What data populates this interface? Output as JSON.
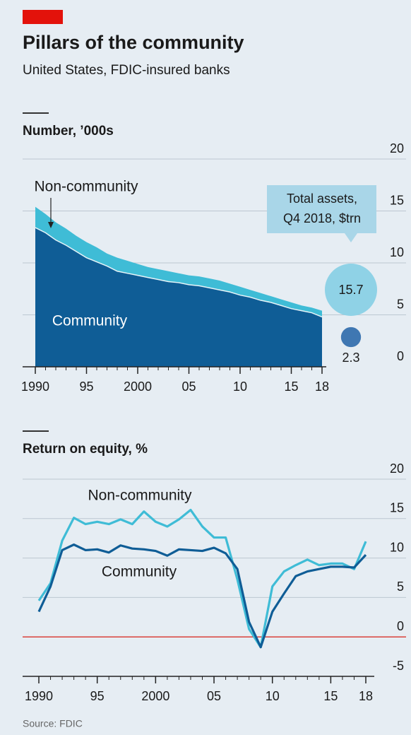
{
  "title": "Pillars of the community",
  "subtitle": "United States, FDIC-insured banks",
  "source": "Source: FDIC",
  "chart_data": [
    {
      "type": "area",
      "stacked": true,
      "title": "Number, ’000s",
      "x": [
        1990,
        1991,
        1992,
        1993,
        1994,
        1995,
        1996,
        1997,
        1998,
        1999,
        2000,
        2001,
        2002,
        2003,
        2004,
        2005,
        2006,
        2007,
        2008,
        2009,
        2010,
        2011,
        2012,
        2013,
        2014,
        2015,
        2016,
        2017,
        2018
      ],
      "xlim": [
        1990,
        2018
      ],
      "xticks": [
        {
          "value": 1990,
          "label": "1990"
        },
        {
          "value": 1995,
          "label": "95"
        },
        {
          "value": 2000,
          "label": "2000"
        },
        {
          "value": 2005,
          "label": "05"
        },
        {
          "value": 2010,
          "label": "10"
        },
        {
          "value": 2015,
          "label": "15"
        },
        {
          "value": 2018,
          "label": "18"
        }
      ],
      "ylim": [
        0,
        20
      ],
      "yticks": [
        0,
        5,
        10,
        15,
        20
      ],
      "grid": true,
      "series": [
        {
          "name": "Community",
          "color": "#0f5d96",
          "values": [
            13.4,
            12.9,
            12.2,
            11.7,
            11.1,
            10.5,
            10.1,
            9.7,
            9.2,
            9.0,
            8.8,
            8.6,
            8.4,
            8.2,
            8.1,
            7.9,
            7.8,
            7.6,
            7.4,
            7.2,
            6.9,
            6.7,
            6.4,
            6.2,
            5.9,
            5.6,
            5.4,
            5.2,
            4.8
          ]
        },
        {
          "name": "Non-community",
          "color": "#3fbcd6",
          "values": [
            2.0,
            1.8,
            1.7,
            1.6,
            1.5,
            1.5,
            1.4,
            1.2,
            1.3,
            1.2,
            1.1,
            1.0,
            1.0,
            1.0,
            0.9,
            0.9,
            0.9,
            0.9,
            0.9,
            0.8,
            0.8,
            0.7,
            0.7,
            0.6,
            0.6,
            0.6,
            0.5,
            0.5,
            0.6
          ]
        }
      ],
      "bubbles": {
        "title": [
          "Total assets,",
          "Q4 2018, $trn"
        ],
        "values": [
          15.7,
          2.3
        ],
        "colors": [
          "#8fd2e6",
          "#3f77b2"
        ]
      }
    },
    {
      "type": "line",
      "title": "Return on equity, %",
      "x": [
        1990,
        1991,
        1992,
        1993,
        1994,
        1995,
        1996,
        1997,
        1998,
        1999,
        2000,
        2001,
        2002,
        2003,
        2004,
        2005,
        2006,
        2007,
        2008,
        2009,
        2010,
        2011,
        2012,
        2013,
        2014,
        2015,
        2016,
        2017,
        2018
      ],
      "xlim": [
        1990,
        2018
      ],
      "xticks": [
        {
          "value": 1990,
          "label": "1990"
        },
        {
          "value": 1995,
          "label": "95"
        },
        {
          "value": 2000,
          "label": "2000"
        },
        {
          "value": 2005,
          "label": "05"
        },
        {
          "value": 2010,
          "label": "10"
        },
        {
          "value": 2015,
          "label": "15"
        },
        {
          "value": 2018,
          "label": "18"
        }
      ],
      "ylim": [
        -5,
        20
      ],
      "yticks": [
        -5,
        0,
        5,
        10,
        15,
        20
      ],
      "grid": true,
      "zero_line": "#d9413b",
      "series": [
        {
          "name": "Non-community",
          "color": "#3fbcd6",
          "values": [
            4.6,
            6.8,
            12.2,
            15.1,
            14.3,
            14.6,
            14.3,
            14.9,
            14.3,
            15.9,
            14.6,
            14.0,
            14.9,
            16.1,
            14.0,
            12.6,
            12.6,
            7.3,
            1.0,
            -1.3,
            6.4,
            8.3,
            9.1,
            9.8,
            9.1,
            9.3,
            9.3,
            8.6,
            12.1
          ]
        },
        {
          "name": "Community",
          "color": "#0f5d96",
          "values": [
            3.2,
            6.4,
            11.0,
            11.7,
            11.0,
            11.1,
            10.7,
            11.6,
            11.2,
            11.1,
            10.9,
            10.3,
            11.1,
            11.0,
            10.9,
            11.3,
            10.6,
            8.6,
            1.9,
            -1.3,
            3.2,
            5.5,
            7.7,
            8.3,
            8.6,
            8.9,
            8.9,
            8.8,
            10.4
          ]
        }
      ]
    }
  ]
}
